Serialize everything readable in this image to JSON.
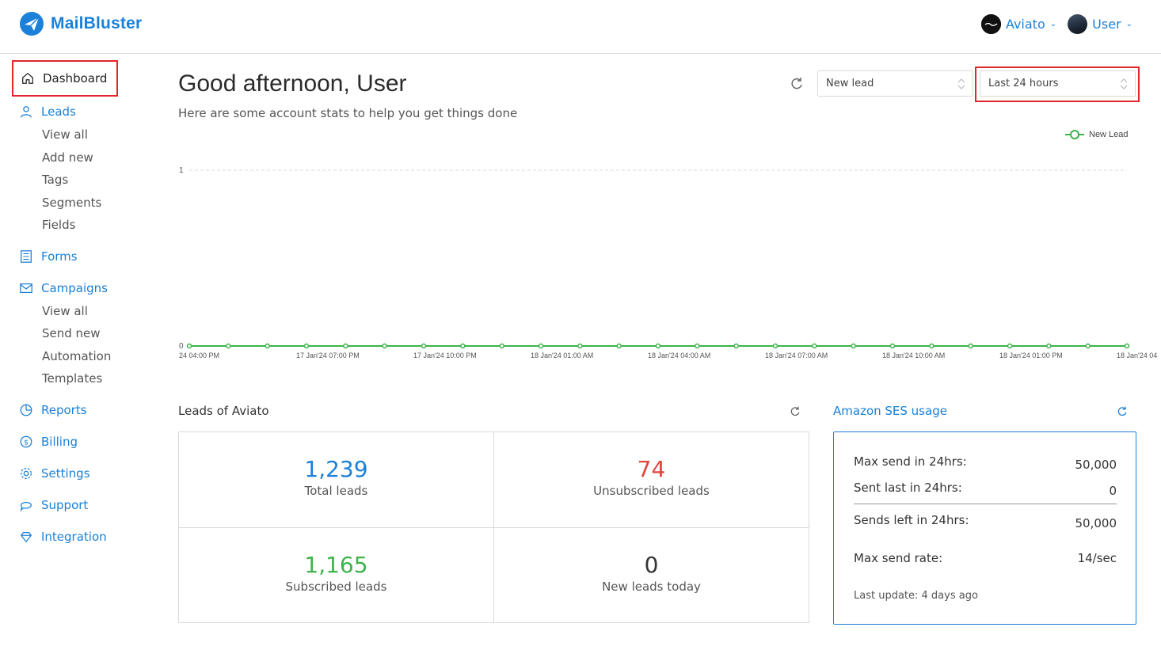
{
  "header": {
    "brand": "MailBluster",
    "account_menu": "Aviato",
    "user_menu": "User"
  },
  "sidebar": {
    "dashboard": "Dashboard",
    "leads": "Leads",
    "leads_sub": [
      "View all",
      "Add new",
      "Tags",
      "Segments",
      "Fields"
    ],
    "forms": "Forms",
    "campaigns": "Campaigns",
    "campaigns_sub": [
      "View all",
      "Send new",
      "Automation",
      "Templates"
    ],
    "reports": "Reports",
    "billing": "Billing",
    "settings": "Settings",
    "support": "Support",
    "integration": "Integration"
  },
  "main": {
    "greeting": "Good afternoon, User",
    "subtitle": "Here are some account stats to help you get things done",
    "metric_select": "New lead",
    "range_select": "Last 24 hours"
  },
  "chart_data": {
    "type": "line",
    "legend": [
      "New Lead"
    ],
    "legend_position": "top-right",
    "ylim": [
      0,
      1
    ],
    "yticks": [
      "0",
      "1"
    ],
    "x_tick_labels": [
      "24 04:00 PM",
      "17 Jan'24 07:00 PM",
      "17 Jan'24 10:00 PM",
      "18 Jan'24 01:00 AM",
      "18 Jan'24 04:00 AM",
      "18 Jan'24 07:00 AM",
      "18 Jan'24 10:00 AM",
      "18 Jan'24 01:00 PM",
      "18 Jan'24 04"
    ],
    "series": [
      {
        "name": "New Lead",
        "values": [
          0,
          0,
          0,
          0,
          0,
          0,
          0,
          0,
          0,
          0,
          0,
          0,
          0,
          0,
          0,
          0,
          0,
          0,
          0,
          0,
          0,
          0,
          0,
          0,
          0
        ]
      }
    ],
    "colors": {
      "line": "#3db34a",
      "grid": "#d9d9d9"
    }
  },
  "leads": {
    "title": "Leads of Aviato",
    "total_value": "1,239",
    "total_label": "Total leads",
    "unsub_value": "74",
    "unsub_label": "Unsubscribed leads",
    "sub_value": "1,165",
    "sub_label": "Subscribed leads",
    "new_value": "0",
    "new_label": "New leads today"
  },
  "ses": {
    "title": "Amazon SES usage",
    "max_send_label": "Max send in 24hrs:",
    "max_send_value": "50,000",
    "sent_last_label": "Sent last in 24hrs:",
    "sent_last_value": "0",
    "sends_left_label": "Sends left in 24hrs:",
    "sends_left_value": "50,000",
    "max_rate_label": "Max send rate:",
    "max_rate_value": "14/sec",
    "last_update": "Last update: 4 days ago"
  },
  "colors": {
    "accent": "#1a80d9",
    "highlight_border": "#e0262b",
    "unsub": "#e0453a",
    "subscribed": "#3db34a"
  }
}
